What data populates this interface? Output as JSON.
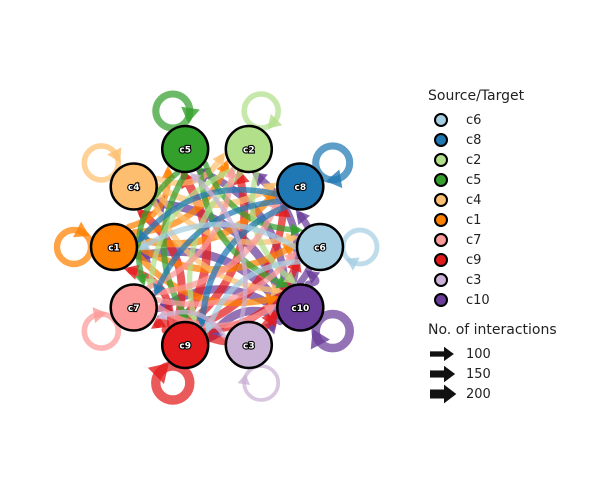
{
  "legend": {
    "color_title": "Source/Target",
    "clusters": [
      {
        "label": "c6",
        "color": "#a6cee3"
      },
      {
        "label": "c8",
        "color": "#1f78b4"
      },
      {
        "label": "c2",
        "color": "#b2df8a"
      },
      {
        "label": "c5",
        "color": "#33a02c"
      },
      {
        "label": "c4",
        "color": "#fdbf6f"
      },
      {
        "label": "c1",
        "color": "#ff7f00"
      },
      {
        "label": "c7",
        "color": "#fb9a99"
      },
      {
        "label": "c9",
        "color": "#e31a1c"
      },
      {
        "label": "c3",
        "color": "#cab2d6"
      },
      {
        "label": "c10",
        "color": "#6a3d9a"
      }
    ],
    "size_title": "No. of interactions",
    "sizes": [
      {
        "label": "100",
        "value": 100
      },
      {
        "label": "150",
        "value": 150
      },
      {
        "label": "200",
        "value": 200
      }
    ]
  },
  "graph": {
    "nodes": [
      {
        "id": "c5",
        "label": "c5",
        "color": "#33a02c"
      },
      {
        "id": "c2",
        "label": "c2",
        "color": "#b2df8a"
      },
      {
        "id": "c8",
        "label": "c8",
        "color": "#1f78b4"
      },
      {
        "id": "c6",
        "label": "c6",
        "color": "#a6cee3"
      },
      {
        "id": "c10",
        "label": "c10",
        "color": "#6a3d9a"
      },
      {
        "id": "c3",
        "label": "c3",
        "color": "#cab2d6"
      },
      {
        "id": "c9",
        "label": "c9",
        "color": "#e31a1c"
      },
      {
        "id": "c7",
        "label": "c7",
        "color": "#fb9a99"
      },
      {
        "id": "c1",
        "label": "c1",
        "color": "#ff7f00"
      },
      {
        "id": "c4",
        "label": "c4",
        "color": "#fdbf6f"
      }
    ],
    "self_loops": [
      {
        "node": "c5",
        "weight": 150
      },
      {
        "node": "c2",
        "weight": 110
      },
      {
        "node": "c8",
        "weight": 150
      },
      {
        "node": "c6",
        "weight": 90
      },
      {
        "node": "c10",
        "weight": 190
      },
      {
        "node": "c3",
        "weight": 60
      },
      {
        "node": "c9",
        "weight": 210
      },
      {
        "node": "c7",
        "weight": 110
      },
      {
        "node": "c1",
        "weight": 130
      },
      {
        "node": "c4",
        "weight": 110
      }
    ],
    "edges": [
      {
        "from": "c10",
        "to": "c4",
        "weight": 180
      },
      {
        "from": "c10",
        "to": "c1",
        "weight": 190
      },
      {
        "from": "c10",
        "to": "c7",
        "weight": 170
      },
      {
        "from": "c10",
        "to": "c5",
        "weight": 160
      },
      {
        "from": "c10",
        "to": "c2",
        "weight": 150
      },
      {
        "from": "c10",
        "to": "c9",
        "weight": 180
      },
      {
        "from": "c10",
        "to": "c8",
        "weight": 140
      },
      {
        "from": "c10",
        "to": "c6",
        "weight": 130
      },
      {
        "from": "c10",
        "to": "c3",
        "weight": 120
      },
      {
        "from": "c9",
        "to": "c5",
        "weight": 190
      },
      {
        "from": "c9",
        "to": "c2",
        "weight": 170
      },
      {
        "from": "c9",
        "to": "c8",
        "weight": 160
      },
      {
        "from": "c9",
        "to": "c10",
        "weight": 180
      },
      {
        "from": "c9",
        "to": "c4",
        "weight": 170
      },
      {
        "from": "c9",
        "to": "c1",
        "weight": 150
      },
      {
        "from": "c9",
        "to": "c6",
        "weight": 150
      },
      {
        "from": "c9",
        "to": "c7",
        "weight": 140
      },
      {
        "from": "c1",
        "to": "c8",
        "weight": 150
      },
      {
        "from": "c1",
        "to": "c6",
        "weight": 140
      },
      {
        "from": "c1",
        "to": "c10",
        "weight": 130
      },
      {
        "from": "c1",
        "to": "c2",
        "weight": 130
      },
      {
        "from": "c1",
        "to": "c5",
        "weight": 120
      },
      {
        "from": "c4",
        "to": "c8",
        "weight": 130
      },
      {
        "from": "c4",
        "to": "c2",
        "weight": 120
      },
      {
        "from": "c4",
        "to": "c6",
        "weight": 110
      },
      {
        "from": "c4",
        "to": "c10",
        "weight": 110
      },
      {
        "from": "c5",
        "to": "c9",
        "weight": 120
      },
      {
        "from": "c5",
        "to": "c10",
        "weight": 120
      },
      {
        "from": "c5",
        "to": "c6",
        "weight": 110
      },
      {
        "from": "c5",
        "to": "c7",
        "weight": 110
      },
      {
        "from": "c2",
        "to": "c10",
        "weight": 110
      },
      {
        "from": "c2",
        "to": "c9",
        "weight": 100
      },
      {
        "from": "c2",
        "to": "c7",
        "weight": 100
      },
      {
        "from": "c7",
        "to": "c8",
        "weight": 120
      },
      {
        "from": "c7",
        "to": "c6",
        "weight": 110
      },
      {
        "from": "c7",
        "to": "c10",
        "weight": 110
      },
      {
        "from": "c7",
        "to": "c2",
        "weight": 100
      },
      {
        "from": "c8",
        "to": "c9",
        "weight": 120
      },
      {
        "from": "c8",
        "to": "c7",
        "weight": 110
      },
      {
        "from": "c8",
        "to": "c1",
        "weight": 110
      },
      {
        "from": "c6",
        "to": "c9",
        "weight": 100
      },
      {
        "from": "c6",
        "to": "c1",
        "weight": 100
      },
      {
        "from": "c3",
        "to": "c7",
        "weight": 80
      },
      {
        "from": "c3",
        "to": "c5",
        "weight": 80
      }
    ]
  }
}
